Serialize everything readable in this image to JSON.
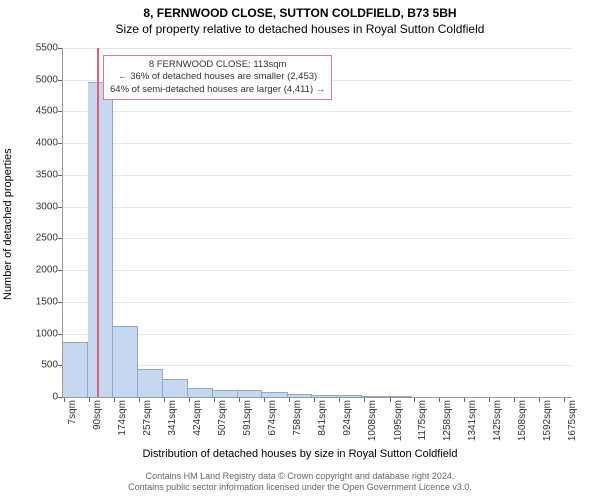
{
  "title": "8, FERNWOOD CLOSE, SUTTON COLDFIELD, B73 5BH",
  "subtitle": "Size of property relative to detached houses in Royal Sutton Coldfield",
  "chart": {
    "type": "histogram",
    "ylabel": "Number of detached properties",
    "xlabel": "Distribution of detached houses by size in Royal Sutton Coldfield",
    "ylim": [
      0,
      5500
    ],
    "ytick_step": 500,
    "grid_color": "#e8e8e8",
    "bar_color": "#c4d8f0",
    "bar_border": "#8fa8c9",
    "highlight_color": "#e85d75",
    "highlight_x": 113,
    "xmin": 0,
    "xmax": 1700,
    "bars": [
      {
        "x0": 0,
        "x1": 83,
        "count": 850
      },
      {
        "x0": 83,
        "x1": 166,
        "count": 4950
      },
      {
        "x0": 166,
        "x1": 250,
        "count": 1100
      },
      {
        "x0": 250,
        "x1": 333,
        "count": 420
      },
      {
        "x0": 333,
        "x1": 416,
        "count": 270
      },
      {
        "x0": 416,
        "x1": 500,
        "count": 130
      },
      {
        "x0": 500,
        "x1": 583,
        "count": 100
      },
      {
        "x0": 583,
        "x1": 666,
        "count": 90
      },
      {
        "x0": 666,
        "x1": 750,
        "count": 60
      },
      {
        "x0": 750,
        "x1": 833,
        "count": 30
      },
      {
        "x0": 833,
        "x1": 916,
        "count": 15
      },
      {
        "x0": 916,
        "x1": 1000,
        "count": 15
      },
      {
        "x0": 1000,
        "x1": 1083,
        "count": 5
      },
      {
        "x0": 1083,
        "x1": 1166,
        "count": 5
      }
    ],
    "xticks": [
      {
        "pos": 7,
        "label": "7sqm"
      },
      {
        "pos": 90,
        "label": "90sqm"
      },
      {
        "pos": 174,
        "label": "174sqm"
      },
      {
        "pos": 257,
        "label": "257sqm"
      },
      {
        "pos": 341,
        "label": "341sqm"
      },
      {
        "pos": 424,
        "label": "424sqm"
      },
      {
        "pos": 507,
        "label": "507sqm"
      },
      {
        "pos": 591,
        "label": "591sqm"
      },
      {
        "pos": 674,
        "label": "674sqm"
      },
      {
        "pos": 758,
        "label": "758sqm"
      },
      {
        "pos": 841,
        "label": "841sqm"
      },
      {
        "pos": 924,
        "label": "924sqm"
      },
      {
        "pos": 1008,
        "label": "1008sqm"
      },
      {
        "pos": 1095,
        "label": "1095sqm"
      },
      {
        "pos": 1175,
        "label": "1175sqm"
      },
      {
        "pos": 1258,
        "label": "1258sqm"
      },
      {
        "pos": 1341,
        "label": "1341sqm"
      },
      {
        "pos": 1425,
        "label": "1425sqm"
      },
      {
        "pos": 1508,
        "label": "1508sqm"
      },
      {
        "pos": 1592,
        "label": "1592sqm"
      },
      {
        "pos": 1675,
        "label": "1675sqm"
      }
    ]
  },
  "annotation": {
    "line1": "8 FERNWOOD CLOSE: 113sqm",
    "line2": "← 36% of detached houses are smaller (2,453)",
    "line3": "64% of semi-detached houses are larger (4,411) →",
    "border_color": "#e27788"
  },
  "footer": {
    "line1": "Contains HM Land Registry data © Crown copyright and database right 2024.",
    "line2": "Contains public sector information licensed under the Open Government Licence v3.0."
  }
}
